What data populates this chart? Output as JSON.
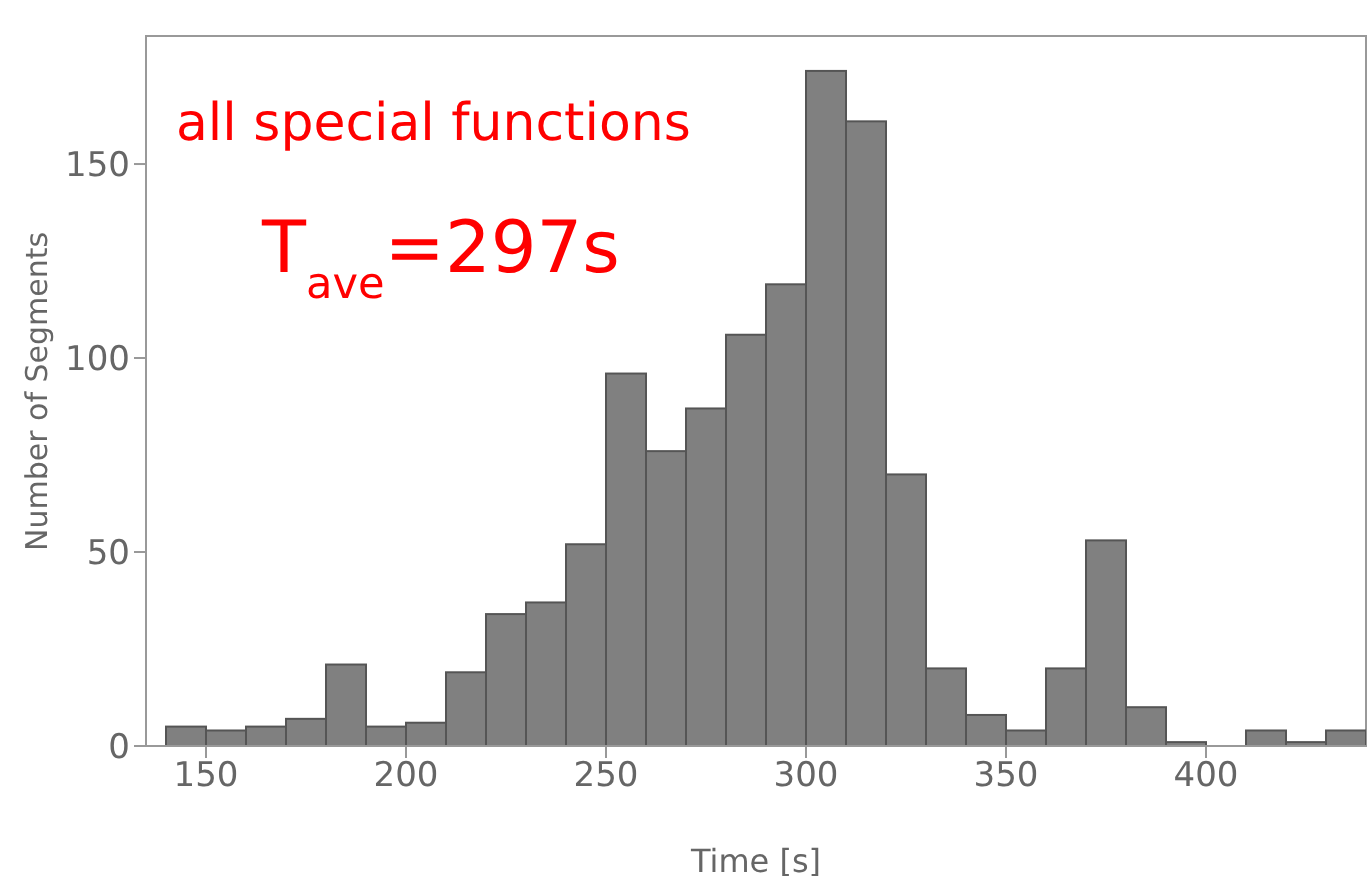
{
  "chart_data": {
    "type": "histogram",
    "xlabel": "Time [s]",
    "ylabel": "Number of Segments",
    "annotations": [
      "all special functions",
      "T$_{ave}$=297s"
    ],
    "bins": [
      140,
      150,
      160,
      170,
      180,
      190,
      200,
      210,
      220,
      230,
      240,
      250,
      260,
      270,
      280,
      290,
      300,
      310,
      320,
      330,
      340,
      350,
      360,
      370,
      380,
      390,
      400,
      410,
      420,
      430,
      440
    ],
    "values": [
      5,
      4,
      5,
      7,
      21,
      5,
      6,
      19,
      34,
      37,
      52,
      96,
      76,
      87,
      106,
      119,
      174,
      161,
      70,
      20,
      8,
      4,
      20,
      53,
      10,
      1,
      0,
      4,
      1,
      4
    ],
    "color": "#808080",
    "xlim": [
      135,
      440
    ],
    "xticks": [
      150,
      200,
      250,
      300,
      350,
      400
    ],
    "ylim": [
      0,
      183
    ],
    "yticks": [
      0,
      50,
      100,
      150
    ]
  }
}
